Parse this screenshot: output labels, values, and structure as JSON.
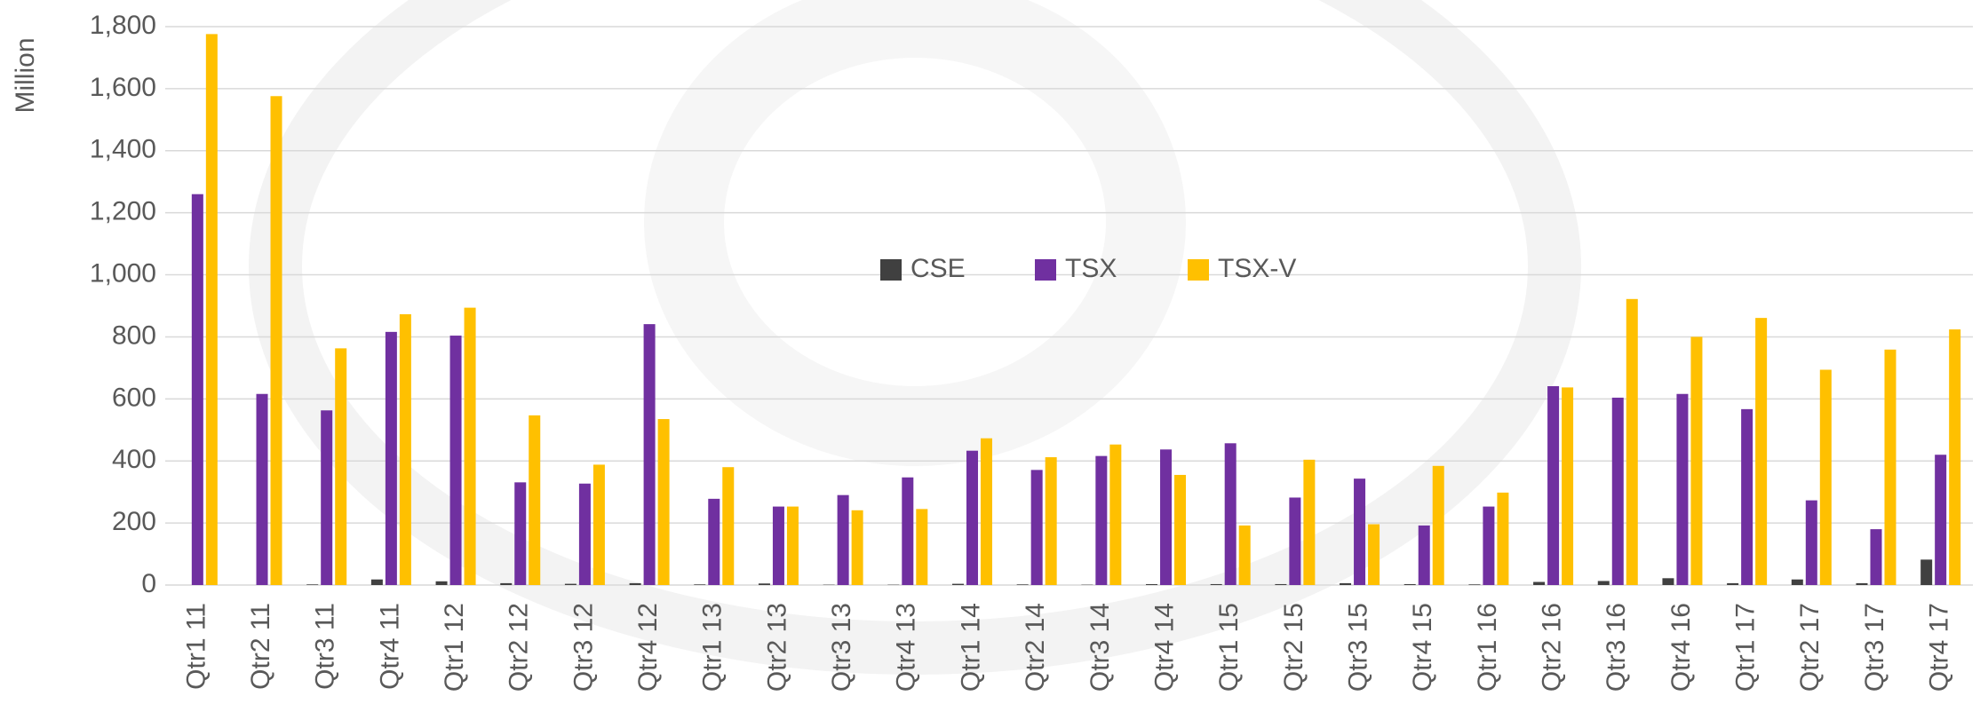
{
  "chart_data": {
    "type": "bar",
    "y_label": "Million",
    "categories": [
      "Qtr1 11",
      "Qtr2 11",
      "Qtr3 11",
      "Qtr4 11",
      "Qtr1 12",
      "Qtr2 12",
      "Qtr3 12",
      "Qtr4 12",
      "Qtr1 13",
      "Qtr2 13",
      "Qtr3 13",
      "Qtr4 13",
      "Qtr1 14",
      "Qtr2 14",
      "Qtr3 14",
      "Qtr4 14",
      "Qtr1 15",
      "Qtr2 15",
      "Qtr3 15",
      "Qtr4 15",
      "Qtr1 16",
      "Qtr2 16",
      "Qtr3 16",
      "Qtr4 16",
      "Qtr1 17",
      "Qtr2 17",
      "Qtr3 17",
      "Qtr4 17"
    ],
    "series": [
      {
        "name": "CSE",
        "color": "#404040",
        "values": [
          0,
          0,
          2,
          18,
          12,
          6,
          4,
          6,
          2,
          5,
          1,
          1,
          4,
          2,
          1,
          3,
          3,
          3,
          6,
          3,
          2,
          10,
          13,
          22,
          6,
          18,
          6,
          82
        ]
      },
      {
        "name": "TSX",
        "color": "#7030a0",
        "values": [
          1260,
          616,
          563,
          816,
          804,
          331,
          327,
          841,
          278,
          253,
          290,
          347,
          433,
          371,
          416,
          437,
          457,
          282,
          343,
          192,
          253,
          641,
          604,
          616,
          567,
          273,
          180,
          420
        ]
      },
      {
        "name": "TSX-V",
        "color": "#ffc000",
        "values": [
          1776,
          1576,
          763,
          873,
          894,
          547,
          388,
          535,
          380,
          253,
          241,
          245,
          473,
          412,
          453,
          355,
          192,
          404,
          196,
          384,
          298,
          637,
          922,
          800,
          861,
          694,
          759,
          824
        ]
      }
    ],
    "ylim": [
      0,
      1800
    ],
    "yticks": [
      0,
      200,
      400,
      600,
      800,
      {
        "value": 1000,
        "label": "1,000"
      },
      {
        "value": 1200,
        "label": "1,200"
      },
      {
        "value": 1400,
        "label": "1,400"
      },
      {
        "value": 1600,
        "label": "1,600"
      },
      {
        "value": 1800,
        "label": "1,800"
      }
    ],
    "grid": true,
    "legend": "center"
  }
}
